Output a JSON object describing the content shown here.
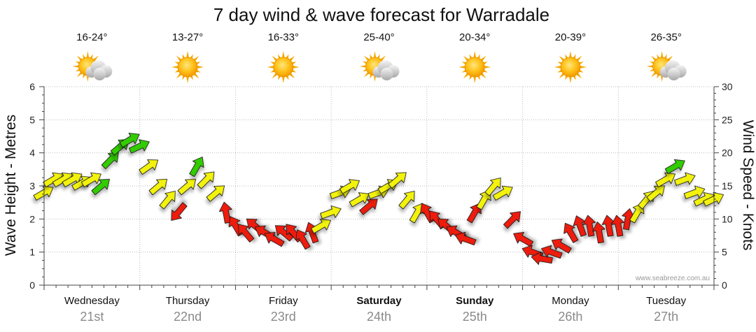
{
  "page": {
    "title": "7 day wind & wave forecast for Warradale",
    "credit": "www.seabreeze.com.au"
  },
  "chart_data": {
    "type": "line",
    "title": "7 day wind & wave forecast for Warradale",
    "ylabel_left": "Wave Height - Metres",
    "ylabel_right": "Wind Speed - Knots",
    "ylim_left": [
      0,
      6
    ],
    "ylim_right": [
      0,
      30
    ],
    "yticks_left": [
      "0",
      "1",
      "2",
      "3",
      "4",
      "5",
      "6"
    ],
    "yticks_right": [
      "0",
      "5",
      "10",
      "15",
      "20",
      "25",
      "30"
    ],
    "days": [
      {
        "name": "Wednesday",
        "date": "21st",
        "temp": "16-24°",
        "weather": "partly-cloudy",
        "bold": false
      },
      {
        "name": "Thursday",
        "date": "22nd",
        "temp": "13-27°",
        "weather": "sunny",
        "bold": false
      },
      {
        "name": "Friday",
        "date": "23rd",
        "temp": "16-33°",
        "weather": "sunny",
        "bold": false
      },
      {
        "name": "Saturday",
        "date": "24th",
        "temp": "25-40°",
        "weather": "partly-cloudy",
        "bold": true
      },
      {
        "name": "Sunday",
        "date": "25th",
        "temp": "20-34°",
        "weather": "sunny",
        "bold": true
      },
      {
        "name": "Monday",
        "date": "26th",
        "temp": "20-39°",
        "weather": "sunny",
        "bold": false
      },
      {
        "name": "Tuesday",
        "date": "27th",
        "temp": "26-35°",
        "weather": "partly-cloudy",
        "bold": false
      }
    ],
    "wind_colors": {
      "green": "#33cc00",
      "yellow": "#f2f20a",
      "red": "#ee1c0c"
    },
    "wind_series": {
      "name": "Wind Speed (knots)",
      "t": [
        0.0,
        0.1,
        0.2,
        0.3,
        0.4,
        0.5,
        0.6,
        0.7,
        0.8,
        0.9,
        1.0,
        1.1,
        1.2,
        1.3,
        1.4,
        1.5,
        1.6,
        1.7,
        1.8,
        1.9,
        2.0,
        2.1,
        2.2,
        2.3,
        2.4,
        2.5,
        2.6,
        2.7,
        2.8,
        2.9,
        3.0,
        3.1,
        3.2,
        3.3,
        3.4,
        3.5,
        3.6,
        3.7,
        3.8,
        3.9,
        4.0,
        4.1,
        4.2,
        4.3,
        4.4,
        4.5,
        4.6,
        4.7,
        4.8,
        4.9,
        5.0,
        5.1,
        5.2,
        5.3,
        5.4,
        5.5,
        5.6,
        5.7,
        5.8,
        5.9,
        6.0,
        6.1,
        6.2,
        6.3,
        6.4,
        6.5,
        6.6,
        6.7,
        6.8,
        6.9,
        7.0
      ],
      "values": [
        14,
        16,
        16,
        16,
        15.5,
        16,
        15,
        19,
        21,
        22,
        21,
        18,
        15,
        13,
        11,
        15,
        18,
        16,
        14,
        11,
        9,
        8,
        9,
        8,
        7,
        8,
        8,
        7,
        8,
        9,
        11,
        14,
        15,
        13,
        12,
        14,
        15,
        16,
        13,
        11,
        11,
        10,
        9,
        8,
        7,
        11,
        13,
        15,
        14,
        10,
        7,
        5,
        4,
        5,
        6,
        8,
        9,
        9,
        8,
        9,
        9,
        10,
        11,
        13,
        14,
        16,
        18,
        16,
        14,
        13,
        13
      ],
      "angles": [
        -30,
        -30,
        -30,
        -30,
        -30,
        -30,
        -40,
        -45,
        -40,
        -30,
        -25,
        -35,
        -40,
        -50,
        130,
        -40,
        -60,
        -45,
        -40,
        -100,
        -120,
        -130,
        -140,
        -150,
        -150,
        -140,
        -130,
        -120,
        -110,
        -30,
        -20,
        -20,
        -30,
        -30,
        -40,
        -20,
        -30,
        -40,
        -50,
        -60,
        -120,
        -130,
        -140,
        -150,
        -160,
        -60,
        -60,
        -50,
        -30,
        -45,
        -150,
        -160,
        -170,
        -160,
        -150,
        -120,
        -110,
        -100,
        -100,
        -100,
        -100,
        -80,
        -60,
        -50,
        -40,
        -30,
        -30,
        -20,
        -20,
        -25,
        -25
      ],
      "bands": [
        "yellow",
        "yellow",
        "yellow",
        "yellow",
        "yellow",
        "yellow",
        "green",
        "green",
        "green",
        "green",
        "green",
        "yellow",
        "yellow",
        "yellow",
        "red",
        "yellow",
        "green",
        "yellow",
        "yellow",
        "red",
        "red",
        "red",
        "red",
        "red",
        "red",
        "red",
        "red",
        "red",
        "red",
        "yellow",
        "yellow",
        "yellow",
        "yellow",
        "yellow",
        "red",
        "yellow",
        "yellow",
        "yellow",
        "yellow",
        "yellow",
        "red",
        "red",
        "red",
        "red",
        "red",
        "red",
        "yellow",
        "yellow",
        "yellow",
        "red",
        "red",
        "red",
        "red",
        "red",
        "red",
        "red",
        "red",
        "red",
        "red",
        "red",
        "red",
        "red",
        "yellow",
        "yellow",
        "yellow",
        "yellow",
        "green",
        "yellow",
        "yellow",
        "yellow",
        "yellow"
      ]
    }
  }
}
